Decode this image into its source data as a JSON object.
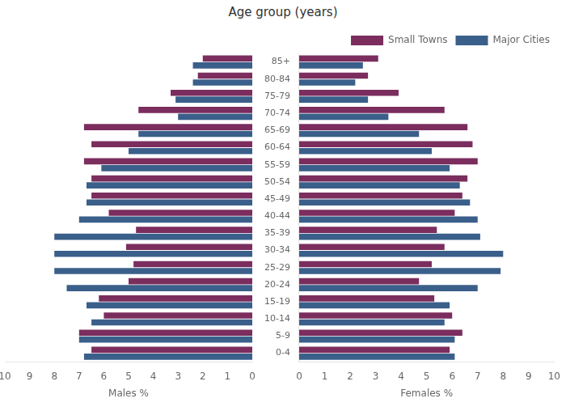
{
  "chart_data": [
    {
      "type": "bar",
      "orientation": "horizontal",
      "title": "Age group (years)",
      "xlabel": "Males %",
      "categories": [
        "0-4",
        "5-9",
        "10-14",
        "15-19",
        "20-24",
        "25-29",
        "30-34",
        "35-39",
        "40-44",
        "45-49",
        "50-54",
        "55-59",
        "60-64",
        "65-69",
        "70-74",
        "75-79",
        "80-84",
        "85+"
      ],
      "series": [
        {
          "name": "Small Towns",
          "color": "#7B2D5E",
          "values": [
            6.5,
            7.0,
            6.0,
            6.2,
            5.0,
            4.8,
            5.1,
            4.7,
            5.8,
            6.5,
            6.5,
            6.8,
            6.5,
            6.8,
            4.6,
            3.3,
            2.2,
            2.0
          ]
        },
        {
          "name": "Major Cities",
          "color": "#3A5F8A",
          "values": [
            6.8,
            7.0,
            6.5,
            6.7,
            7.5,
            8.0,
            8.0,
            8.0,
            7.0,
            6.7,
            6.7,
            6.1,
            5.0,
            4.6,
            3.0,
            3.1,
            2.4,
            2.4
          ]
        }
      ],
      "xlim": [
        10,
        0
      ],
      "xticks": [
        0,
        1,
        2,
        3,
        4,
        5,
        6,
        7,
        8,
        9,
        10
      ],
      "grid": false,
      "legend": false,
      "tick_labels": "x"
    },
    {
      "type": "bar",
      "orientation": "horizontal",
      "xlabel": "Females %",
      "categories": [
        "0-4",
        "5-9",
        "10-14",
        "15-19",
        "20-24",
        "25-29",
        "30-34",
        "35-39",
        "40-44",
        "45-49",
        "50-54",
        "55-59",
        "60-64",
        "65-69",
        "70-74",
        "75-79",
        "80-84",
        "85+"
      ],
      "series": [
        {
          "name": "Small Towns",
          "color": "#7B2D5E",
          "values": [
            5.9,
            6.4,
            6.0,
            5.3,
            4.7,
            5.2,
            5.7,
            5.4,
            6.1,
            6.4,
            6.6,
            7.0,
            6.8,
            6.6,
            5.7,
            3.9,
            2.7,
            3.1
          ]
        },
        {
          "name": "Major Cities",
          "color": "#3A5F8A",
          "values": [
            6.1,
            6.1,
            5.7,
            5.9,
            7.0,
            7.9,
            8.0,
            7.1,
            7.0,
            6.7,
            6.3,
            5.9,
            5.2,
            4.7,
            3.5,
            2.7,
            2.2,
            2.5
          ]
        }
      ],
      "xlim": [
        0,
        10
      ],
      "xticks": [
        0,
        1,
        2,
        3,
        4,
        5,
        6,
        7,
        8,
        9,
        10
      ],
      "grid": false,
      "legend": "upper right"
    }
  ]
}
